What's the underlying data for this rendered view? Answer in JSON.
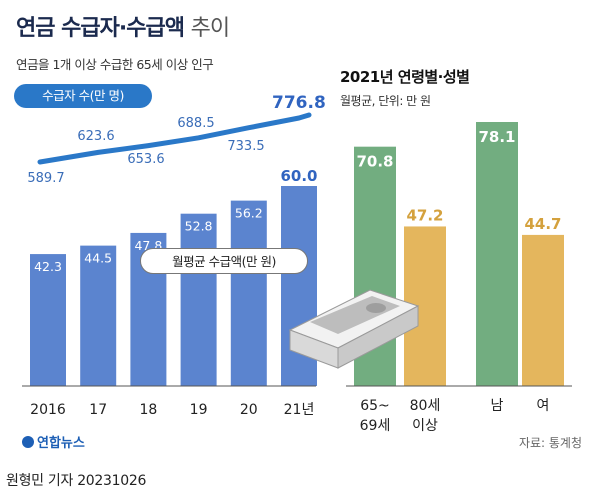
{
  "header": {
    "title_bold": "연금 수급자·수급액",
    "title_light": "추이",
    "subtitle": "연금을 1개 이상 수급한 65세 이상 인구"
  },
  "callouts": {
    "recipients": "수급자 수(만 명)",
    "amount": "월평균 수급액(만 원)"
  },
  "section2": {
    "title": "2021년 연령별·성별",
    "subtitle": "월평균, 단위: 만 원"
  },
  "footer": {
    "logo": "연합뉴스",
    "source": "자료: 통계청",
    "byline": "원형민 기자  20231026"
  },
  "colors": {
    "bar_blue": "#5b84cf",
    "line_blue": "#2a78c8",
    "green": "#72ad80",
    "gold": "#e4b65d",
    "highlight_text": "#3064c0",
    "gold_text": "#d4a13d"
  },
  "chart_data": [
    {
      "type": "bar",
      "categories": [
        "2016",
        "17",
        "18",
        "19",
        "20",
        "21년"
      ],
      "series": [
        {
          "name": "월평균 수급액(만 원)",
          "values": [
            42.3,
            44.5,
            47.8,
            52.8,
            56.2,
            60.0
          ]
        }
      ],
      "value_labels": [
        "42.3",
        "44.5",
        "47.8",
        "52.8",
        "56.2",
        "60.0"
      ]
    },
    {
      "type": "line",
      "categories": [
        "2016",
        "17",
        "18",
        "19",
        "20",
        "21년"
      ],
      "series": [
        {
          "name": "수급자 수(만 명)",
          "values": [
            589.7,
            623.6,
            653.6,
            688.5,
            733.5,
            776.8
          ]
        }
      ],
      "value_labels": [
        "589.7",
        "623.6",
        "653.6",
        "688.5",
        "733.5",
        "776.8"
      ]
    },
    {
      "type": "bar",
      "categories": [
        "65~\n69세",
        "80세\n이상",
        "남",
        "여"
      ],
      "series": [
        {
          "name": "월평균 수급액(만 원)",
          "values": [
            70.8,
            47.2,
            78.1,
            44.7
          ]
        }
      ],
      "value_labels": [
        "70.8",
        "47.2",
        "78.1",
        "44.7"
      ]
    }
  ]
}
